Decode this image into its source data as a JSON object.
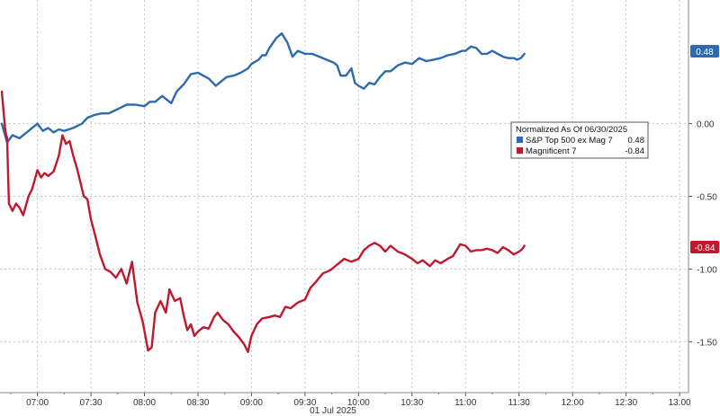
{
  "chart_data": {
    "type": "line",
    "title": "",
    "xlabel": "01 Jul 2025",
    "ylabel": "",
    "x_tick_labels": [
      "07:00",
      "07:30",
      "08:00",
      "08:30",
      "09:00",
      "09:30",
      "10:00",
      "10:30",
      "11:00",
      "11:30",
      "12:00",
      "12:30",
      "13:00"
    ],
    "y_tick_labels": [
      "0.00",
      "-0.50",
      "-1.00",
      "-1.50"
    ],
    "y_ticks": [
      0,
      -0.5,
      -1.0,
      -1.5
    ],
    "ylim": [
      -1.85,
      0.85
    ],
    "grid": true,
    "legend": {
      "title": "Normalized As Of 06/30/2025",
      "placement": "upper-right",
      "items": [
        {
          "label": "S&P Top 500 ex Mag 7",
          "value": "0.48",
          "color": "#2e6aad"
        },
        {
          "label": "Magnificent 7",
          "value": "-0.84",
          "color": "#c0182c"
        }
      ]
    },
    "last_value_badges": [
      {
        "label": "0.48",
        "value": 0.48,
        "color": "#2e6aad"
      },
      {
        "label": "-0.84",
        "value": -0.84,
        "color": "#c0182c"
      }
    ],
    "series": [
      {
        "name": "S&P Top 500 ex Mag 7",
        "color": "#2e6aad",
        "points": [
          [
            "06:40",
            0.0
          ],
          [
            "06:43",
            -0.13
          ],
          [
            "06:46",
            -0.08
          ],
          [
            "06:50",
            -0.1
          ],
          [
            "06:55",
            -0.05
          ],
          [
            "07:00",
            0.0
          ],
          [
            "07:03",
            -0.05
          ],
          [
            "07:06",
            -0.03
          ],
          [
            "07:09",
            -0.06
          ],
          [
            "07:12",
            -0.04
          ],
          [
            "07:15",
            -0.05
          ],
          [
            "07:20",
            -0.03
          ],
          [
            "07:25",
            0.0
          ],
          [
            "07:28",
            0.04
          ],
          [
            "07:32",
            0.06
          ],
          [
            "07:36",
            0.07
          ],
          [
            "07:40",
            0.07
          ],
          [
            "07:45",
            0.1
          ],
          [
            "07:50",
            0.13
          ],
          [
            "07:55",
            0.13
          ],
          [
            "08:00",
            0.12
          ],
          [
            "08:03",
            0.15
          ],
          [
            "08:06",
            0.15
          ],
          [
            "08:10",
            0.19
          ],
          [
            "08:15",
            0.14
          ],
          [
            "08:18",
            0.22
          ],
          [
            "08:22",
            0.27
          ],
          [
            "08:26",
            0.34
          ],
          [
            "08:30",
            0.35
          ],
          [
            "08:33",
            0.33
          ],
          [
            "08:36",
            0.31
          ],
          [
            "08:40",
            0.26
          ],
          [
            "08:43",
            0.29
          ],
          [
            "08:46",
            0.32
          ],
          [
            "08:50",
            0.33
          ],
          [
            "08:54",
            0.35
          ],
          [
            "08:58",
            0.38
          ],
          [
            "09:00",
            0.41
          ],
          [
            "09:04",
            0.44
          ],
          [
            "09:06",
            0.47
          ],
          [
            "09:08",
            0.47
          ],
          [
            "09:10",
            0.52
          ],
          [
            "09:14",
            0.59
          ],
          [
            "09:17",
            0.62
          ],
          [
            "09:20",
            0.56
          ],
          [
            "09:23",
            0.46
          ],
          [
            "09:26",
            0.5
          ],
          [
            "09:30",
            0.48
          ],
          [
            "09:34",
            0.48
          ],
          [
            "09:38",
            0.46
          ],
          [
            "09:42",
            0.44
          ],
          [
            "09:46",
            0.42
          ],
          [
            "09:48",
            0.4
          ],
          [
            "09:50",
            0.33
          ],
          [
            "09:53",
            0.33
          ],
          [
            "09:56",
            0.38
          ],
          [
            "09:58",
            0.28
          ],
          [
            "10:00",
            0.26
          ],
          [
            "10:03",
            0.24
          ],
          [
            "10:06",
            0.28
          ],
          [
            "10:09",
            0.27
          ],
          [
            "10:12",
            0.32
          ],
          [
            "10:15",
            0.36
          ],
          [
            "10:18",
            0.36
          ],
          [
            "10:22",
            0.4
          ],
          [
            "10:26",
            0.42
          ],
          [
            "10:30",
            0.41
          ],
          [
            "10:34",
            0.45
          ],
          [
            "10:38",
            0.43
          ],
          [
            "10:42",
            0.44
          ],
          [
            "10:46",
            0.45
          ],
          [
            "10:50",
            0.47
          ],
          [
            "10:54",
            0.48
          ],
          [
            "10:58",
            0.5
          ],
          [
            "11:00",
            0.5
          ],
          [
            "11:03",
            0.53
          ],
          [
            "11:06",
            0.52
          ],
          [
            "11:09",
            0.48
          ],
          [
            "11:12",
            0.48
          ],
          [
            "11:15",
            0.5
          ],
          [
            "11:18",
            0.48
          ],
          [
            "11:21",
            0.46
          ],
          [
            "11:24",
            0.45
          ],
          [
            "11:27",
            0.45
          ],
          [
            "11:29",
            0.44
          ],
          [
            "11:31",
            0.45
          ],
          [
            "11:33",
            0.48
          ]
        ]
      },
      {
        "name": "Magnificent 7",
        "color": "#c0182c",
        "points": [
          [
            "06:40",
            0.22
          ],
          [
            "06:42",
            -0.05
          ],
          [
            "06:43",
            -0.1
          ],
          [
            "06:44",
            -0.55
          ],
          [
            "06:46",
            -0.6
          ],
          [
            "06:48",
            -0.55
          ],
          [
            "06:50",
            -0.58
          ],
          [
            "06:52",
            -0.63
          ],
          [
            "06:55",
            -0.5
          ],
          [
            "06:57",
            -0.45
          ],
          [
            "07:00",
            -0.32
          ],
          [
            "07:02",
            -0.37
          ],
          [
            "07:04",
            -0.34
          ],
          [
            "07:06",
            -0.36
          ],
          [
            "07:09",
            -0.33
          ],
          [
            "07:12",
            -0.22
          ],
          [
            "07:14",
            -0.08
          ],
          [
            "07:16",
            -0.14
          ],
          [
            "07:18",
            -0.12
          ],
          [
            "07:20",
            -0.22
          ],
          [
            "07:22",
            -0.3
          ],
          [
            "07:24",
            -0.4
          ],
          [
            "07:26",
            -0.5
          ],
          [
            "07:28",
            -0.52
          ],
          [
            "07:30",
            -0.66
          ],
          [
            "07:32",
            -0.75
          ],
          [
            "07:35",
            -0.9
          ],
          [
            "07:38",
            -1.0
          ],
          [
            "07:41",
            -1.02
          ],
          [
            "07:44",
            -1.06
          ],
          [
            "07:47",
            -1.0
          ],
          [
            "07:50",
            -1.1
          ],
          [
            "07:53",
            -0.95
          ],
          [
            "07:56",
            -1.23
          ],
          [
            "07:59",
            -1.36
          ],
          [
            "08:02",
            -1.56
          ],
          [
            "08:04",
            -1.54
          ],
          [
            "08:06",
            -1.3
          ],
          [
            "08:09",
            -1.22
          ],
          [
            "08:12",
            -1.3
          ],
          [
            "08:14",
            -1.14
          ],
          [
            "08:17",
            -1.22
          ],
          [
            "08:20",
            -1.2
          ],
          [
            "08:22",
            -1.32
          ],
          [
            "08:24",
            -1.42
          ],
          [
            "08:26",
            -1.38
          ],
          [
            "08:28",
            -1.46
          ],
          [
            "08:30",
            -1.43
          ],
          [
            "08:33",
            -1.4
          ],
          [
            "08:36",
            -1.41
          ],
          [
            "08:39",
            -1.33
          ],
          [
            "08:41",
            -1.3
          ],
          [
            "08:44",
            -1.35
          ],
          [
            "08:47",
            -1.38
          ],
          [
            "08:50",
            -1.43
          ],
          [
            "08:53",
            -1.47
          ],
          [
            "08:56",
            -1.52
          ],
          [
            "08:58",
            -1.57
          ],
          [
            "09:00",
            -1.46
          ],
          [
            "09:03",
            -1.38
          ],
          [
            "09:06",
            -1.34
          ],
          [
            "09:10",
            -1.33
          ],
          [
            "09:13",
            -1.32
          ],
          [
            "09:16",
            -1.33
          ],
          [
            "09:19",
            -1.26
          ],
          [
            "09:22",
            -1.27
          ],
          [
            "09:26",
            -1.23
          ],
          [
            "09:30",
            -1.21
          ],
          [
            "09:33",
            -1.13
          ],
          [
            "09:36",
            -1.09
          ],
          [
            "09:40",
            -1.03
          ],
          [
            "09:44",
            -1.01
          ],
          [
            "09:48",
            -0.97
          ],
          [
            "09:52",
            -0.93
          ],
          [
            "09:56",
            -0.95
          ],
          [
            "10:00",
            -0.93
          ],
          [
            "10:03",
            -0.87
          ],
          [
            "10:06",
            -0.84
          ],
          [
            "10:09",
            -0.82
          ],
          [
            "10:12",
            -0.84
          ],
          [
            "10:15",
            -0.88
          ],
          [
            "10:18",
            -0.84
          ],
          [
            "10:22",
            -0.88
          ],
          [
            "10:26",
            -0.9
          ],
          [
            "10:30",
            -0.93
          ],
          [
            "10:33",
            -0.96
          ],
          [
            "10:36",
            -0.94
          ],
          [
            "10:40",
            -0.98
          ],
          [
            "10:43",
            -0.94
          ],
          [
            "10:46",
            -0.96
          ],
          [
            "10:50",
            -0.93
          ],
          [
            "10:53",
            -0.91
          ],
          [
            "10:57",
            -0.83
          ],
          [
            "11:00",
            -0.84
          ],
          [
            "11:03",
            -0.88
          ],
          [
            "11:06",
            -0.87
          ],
          [
            "11:09",
            -0.87
          ],
          [
            "11:12",
            -0.86
          ],
          [
            "11:15",
            -0.87
          ],
          [
            "11:18",
            -0.89
          ],
          [
            "11:21",
            -0.85
          ],
          [
            "11:24",
            -0.87
          ],
          [
            "11:27",
            -0.9
          ],
          [
            "11:30",
            -0.88
          ],
          [
            "11:32",
            -0.86
          ],
          [
            "11:33",
            -0.84
          ]
        ]
      }
    ]
  }
}
